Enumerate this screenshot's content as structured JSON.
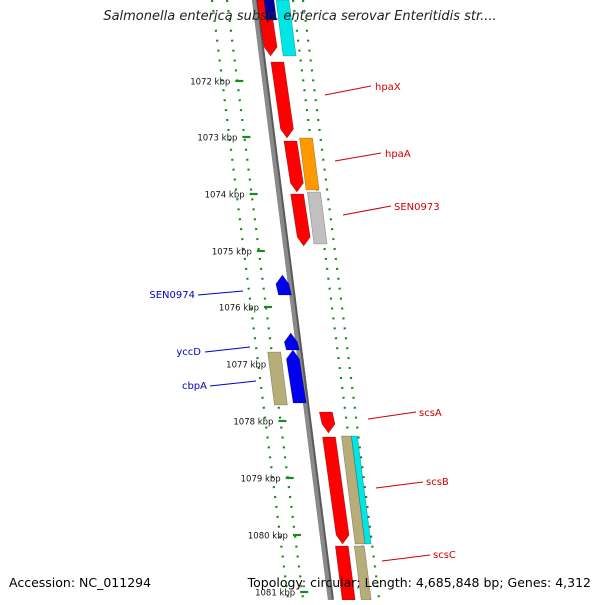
{
  "title": "Salmonella enterica subsp. enterica serovar Enteritidis str....",
  "accession": "Accession: NC_011294",
  "summary": "Topology: circular; Length: 4,685,848 bp; Genes: 4,312",
  "colors": {
    "backbone": "#8a8a8a",
    "dots": "#1a8a1a",
    "forward_label": "#cc0000",
    "reverse_label": "#0000cc",
    "red": "#ff0000",
    "cyan": "#00e5e5",
    "orange": "#ff9900",
    "gray": "#c0c0c0",
    "khaki": "#b7ad78",
    "blue": "#0000ee",
    "navy": "#000099"
  },
  "ticks": [
    {
      "label": "1072 kbp"
    },
    {
      "label": "1073 kbp"
    },
    {
      "label": "1074 kbp"
    },
    {
      "label": "1075 kbp"
    },
    {
      "label": "1076 kbp"
    },
    {
      "label": "1077 kbp"
    },
    {
      "label": "1078 kbp"
    },
    {
      "label": "1079 kbp"
    },
    {
      "label": "1080 kbp"
    },
    {
      "label": "1081 kbp"
    }
  ],
  "features": [
    {
      "strand": "fwd",
      "label": "hpaX"
    },
    {
      "strand": "fwd",
      "label": "hpaA"
    },
    {
      "strand": "fwd",
      "label": "SEN0973"
    },
    {
      "strand": "rev",
      "label": "SEN0974"
    },
    {
      "strand": "rev",
      "label": "yccD"
    },
    {
      "strand": "rev",
      "label": "cbpA"
    },
    {
      "strand": "fwd",
      "label": "scsA"
    },
    {
      "strand": "fwd",
      "label": "scsB"
    },
    {
      "strand": "fwd",
      "label": "scsC"
    }
  ]
}
